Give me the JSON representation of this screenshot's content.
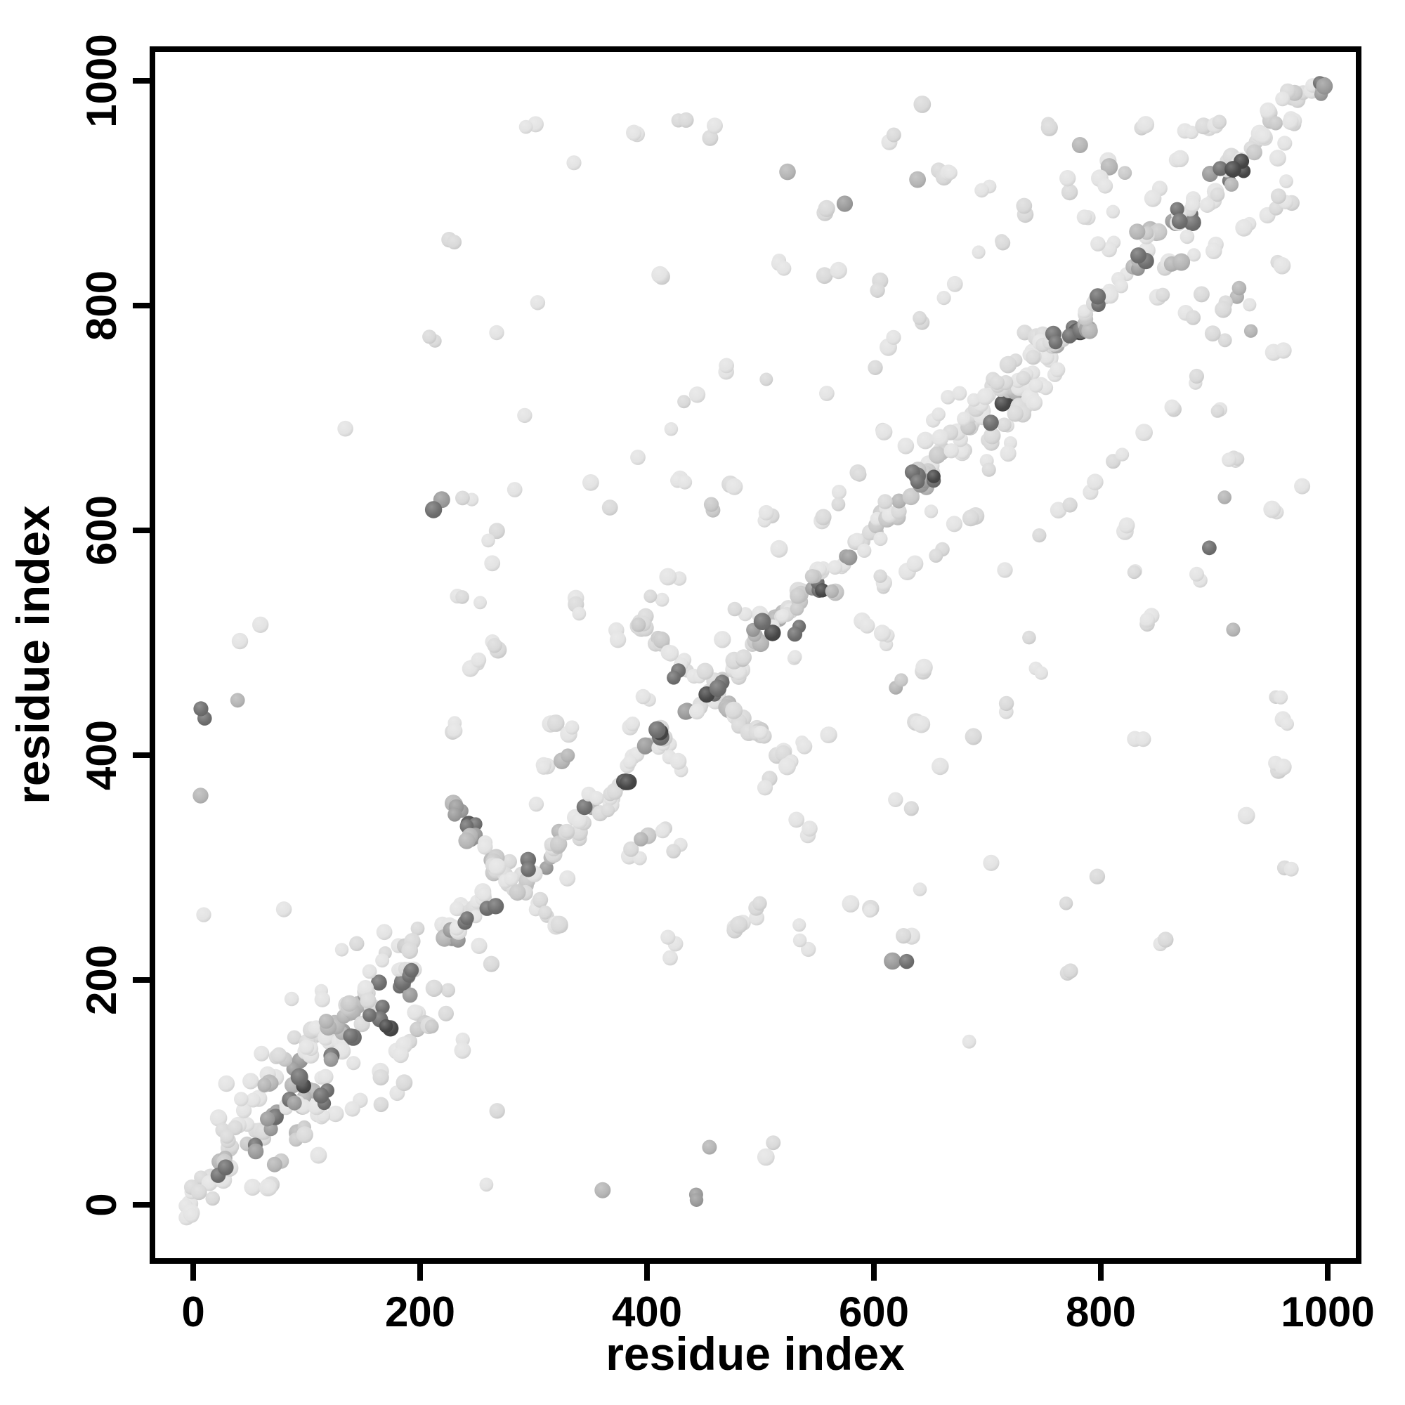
{
  "figure": {
    "background": "#ffffff",
    "frame_color": "#000000"
  },
  "chart_data": {
    "type": "scatter",
    "title": "",
    "xlabel": "residue index",
    "ylabel": "residue index",
    "xlim": [
      0,
      1000
    ],
    "ylim": [
      0,
      1000
    ],
    "x_ticks": {
      "values": [
        0,
        200,
        400,
        600,
        800,
        1000
      ],
      "labels": [
        "0",
        "200",
        "400",
        "600",
        "800",
        "1000"
      ]
    },
    "y_ticks": {
      "values": [
        0,
        200,
        400,
        600,
        800,
        1000
      ],
      "labels": [
        "0",
        "200",
        "400",
        "600",
        "800",
        "1000"
      ]
    },
    "grid": false,
    "legend": null,
    "marker": {
      "shape": "circle",
      "r_min": 9.5,
      "r_max": 12.5,
      "opaque": true
    },
    "palette": [
      "#e3e3e3",
      "#d9d9d9",
      "#c9c9c9",
      "#b5b5b5",
      "#9a9a9a",
      "#6e6e6e",
      "#474747"
    ],
    "shade_weights": [
      38,
      22,
      14,
      10,
      9,
      5,
      2
    ],
    "seed": 20250407,
    "symmetric_mirror": true,
    "diagonal_segments": [
      {
        "x1": 2,
        "y1": 10,
        "x2": 208,
        "y2": 218,
        "clumps": 24,
        "spread": 12,
        "wob": 22,
        "halo": 26,
        "haloSpread": 70
      },
      {
        "x1": 30,
        "y1": 72,
        "x2": 150,
        "y2": 195,
        "clumps": 8,
        "spread": 9,
        "wob": 10,
        "halo": 0,
        "haloSpread": 0
      },
      {
        "x1": 60,
        "y1": 18,
        "x2": 200,
        "y2": 160,
        "clumps": 8,
        "spread": 9,
        "wob": 10,
        "halo": 0,
        "haloSpread": 0
      },
      {
        "x1": 222,
        "y1": 240,
        "x2": 335,
        "y2": 332,
        "clumps": 12,
        "spread": 9,
        "wob": 10,
        "halo": 10,
        "haloSpread": 45
      },
      {
        "x1": 228,
        "y1": 348,
        "x2": 320,
        "y2": 248,
        "clumps": 11,
        "spread": 8,
        "wob": 8,
        "halo": 0,
        "haloSpread": 0
      },
      {
        "x1": 338,
        "y1": 342,
        "x2": 388,
        "y2": 390,
        "clumps": 6,
        "spread": 7,
        "wob": 8,
        "halo": 0,
        "haloSpread": 0
      },
      {
        "x1": 392,
        "y1": 395,
        "x2": 525,
        "y2": 528,
        "clumps": 14,
        "spread": 8,
        "wob": 9,
        "halo": 8,
        "haloSpread": 40
      },
      {
        "x1": 390,
        "y1": 520,
        "x2": 526,
        "y2": 392,
        "clumps": 13,
        "spread": 8,
        "wob": 8,
        "halo": 0,
        "haloSpread": 0
      },
      {
        "x1": 530,
        "y1": 533,
        "x2": 648,
        "y2": 652,
        "clumps": 13,
        "spread": 8,
        "wob": 9,
        "halo": 6,
        "haloSpread": 38
      },
      {
        "x1": 650,
        "y1": 655,
        "x2": 758,
        "y2": 762,
        "clumps": 12,
        "spread": 8,
        "wob": 9,
        "halo": 4,
        "haloSpread": 30
      },
      {
        "x1": 690,
        "y1": 716,
        "x2": 746,
        "y2": 770,
        "clumps": 6,
        "spread": 7,
        "wob": 6,
        "bias": "light"
      },
      {
        "x1": 706,
        "y1": 682,
        "x2": 762,
        "y2": 738,
        "clumps": 6,
        "spread": 7,
        "wob": 6,
        "bias": "light"
      },
      {
        "x1": 762,
        "y1": 766,
        "x2": 996,
        "y2": 1000,
        "clumps": 24,
        "spread": 8,
        "wob": 10,
        "halo": 10,
        "haloSpread": 35
      }
    ],
    "dark_accents": [
      [
        28,
        32,
        2,
        "D"
      ],
      [
        55,
        48,
        2,
        "D"
      ],
      [
        88,
        92,
        2,
        "D"
      ],
      [
        100,
        108,
        2,
        "K"
      ],
      [
        118,
        95,
        3,
        "D"
      ],
      [
        122,
        128,
        2,
        "D"
      ],
      [
        140,
        148,
        2,
        "D"
      ],
      [
        162,
        168,
        3,
        "D"
      ],
      [
        175,
        160,
        2,
        "K"
      ],
      [
        190,
        210,
        3,
        "D"
      ],
      [
        240,
        252,
        2,
        "D"
      ],
      [
        262,
        270,
        2,
        "D"
      ],
      [
        298,
        306,
        2,
        "D"
      ],
      [
        408,
        418,
        3,
        "K"
      ],
      [
        430,
        470,
        2,
        "D"
      ],
      [
        455,
        452,
        2,
        "K"
      ],
      [
        466,
        459,
        2,
        "D"
      ],
      [
        506,
        516,
        2,
        "K"
      ],
      [
        530,
        515,
        2,
        "D"
      ],
      [
        640,
        650,
        4,
        "D"
      ],
      [
        650,
        645,
        2,
        "K"
      ],
      [
        700,
        695,
        2,
        "D"
      ],
      [
        760,
        770,
        2,
        "D"
      ],
      [
        795,
        800,
        2,
        "D"
      ],
      [
        835,
        840,
        2,
        "D"
      ],
      [
        872,
        878,
        2,
        "D"
      ],
      [
        905,
        918,
        2,
        "D"
      ],
      [
        920,
        924,
        3,
        "K"
      ]
    ],
    "contact_sites": [
      [
        8,
        437,
        2,
        "D"
      ],
      [
        46,
        452,
        1,
        "M"
      ],
      [
        60,
        510,
        1,
        "L"
      ],
      [
        10,
        362,
        1,
        "M"
      ],
      [
        15,
        257,
        1,
        "L"
      ],
      [
        41,
        505,
        1,
        "L"
      ],
      [
        80,
        263,
        1,
        "L"
      ],
      [
        107,
        187,
        2,
        "L"
      ],
      [
        140,
        686,
        1,
        "L"
      ],
      [
        145,
        238,
        1,
        "L"
      ],
      [
        171,
        223,
        1,
        "L"
      ],
      [
        209,
        770,
        2,
        "L"
      ],
      [
        215,
        624,
        2,
        "D"
      ],
      [
        225,
        423,
        2,
        "L"
      ],
      [
        232,
        852,
        2,
        "L"
      ],
      [
        233,
        541,
        2,
        "L"
      ],
      [
        235,
        420,
        1,
        "L"
      ],
      [
        238,
        630,
        2,
        "L"
      ],
      [
        250,
        478,
        4,
        "L"
      ],
      [
        253,
        536,
        1,
        "L"
      ],
      [
        261,
        598,
        2,
        "L"
      ],
      [
        263,
        497,
        3,
        "L"
      ],
      [
        267,
        574,
        1,
        "L"
      ],
      [
        268,
        772,
        1,
        "L"
      ],
      [
        280,
        640,
        1,
        "L"
      ],
      [
        300,
        700,
        1,
        "L"
      ],
      [
        300,
        802,
        1,
        "L"
      ],
      [
        300,
        962,
        2,
        "L"
      ],
      [
        310,
        390,
        3,
        "L"
      ],
      [
        315,
        428,
        2,
        "L"
      ],
      [
        330,
        396,
        2,
        "M"
      ],
      [
        332,
        417,
        2,
        "L"
      ],
      [
        336,
        539,
        2,
        "L"
      ],
      [
        340,
        930,
        1,
        "L"
      ],
      [
        342,
        530,
        1,
        "L"
      ],
      [
        350,
        640,
        1,
        "L"
      ],
      [
        352,
        362,
        2,
        "L"
      ],
      [
        365,
        620,
        1,
        "L"
      ],
      [
        373,
        505,
        2,
        "L"
      ],
      [
        389,
        426,
        2,
        "L"
      ],
      [
        390,
        660,
        1,
        "L"
      ],
      [
        390,
        955,
        3,
        "L"
      ],
      [
        405,
        540,
        2,
        "L"
      ],
      [
        415,
        830,
        2,
        "L"
      ],
      [
        420,
        560,
        2,
        "L"
      ],
      [
        420,
        690,
        1,
        "L"
      ],
      [
        430,
        640,
        3,
        "L"
      ],
      [
        430,
        962,
        2,
        "L"
      ],
      [
        440,
        720,
        2,
        "L"
      ],
      [
        455,
        955,
        2,
        "L"
      ],
      [
        460,
        620,
        2,
        "M"
      ],
      [
        470,
        745,
        2,
        "L"
      ],
      [
        475,
        640,
        2,
        "L"
      ],
      [
        485,
        530,
        2,
        "L"
      ],
      [
        500,
        730,
        1,
        "L"
      ],
      [
        505,
        612,
        3,
        "L"
      ],
      [
        517,
        919,
        1,
        "M"
      ],
      [
        520,
        590,
        2,
        "L"
      ],
      [
        520,
        838,
        3,
        "L"
      ],
      [
        545,
        562,
        2,
        "M"
      ],
      [
        555,
        610,
        3,
        "L"
      ],
      [
        560,
        720,
        1,
        "L"
      ],
      [
        560,
        888,
        2,
        "L"
      ],
      [
        562,
        828,
        2,
        "L"
      ],
      [
        570,
        630,
        2,
        "L"
      ],
      [
        580,
        890,
        1,
        "D"
      ],
      [
        585,
        655,
        2,
        "L"
      ],
      [
        600,
        745,
        1,
        "L"
      ],
      [
        600,
        820,
        2,
        "L"
      ],
      [
        610,
        690,
        2,
        "L"
      ],
      [
        615,
        952,
        2,
        "L"
      ],
      [
        620,
        765,
        2,
        "L"
      ],
      [
        635,
        905,
        1,
        "M"
      ],
      [
        640,
        790,
        2,
        "L"
      ],
      [
        640,
        985,
        1,
        "L"
      ],
      [
        655,
        700,
        2,
        "L"
      ],
      [
        660,
        918,
        4,
        "L"
      ],
      [
        665,
        815,
        2,
        "L"
      ],
      [
        672,
        722,
        2,
        "L"
      ],
      [
        690,
        840,
        1,
        "L"
      ],
      [
        700,
        905,
        2,
        "L"
      ],
      [
        710,
        862,
        2,
        "L"
      ],
      [
        735,
        885,
        2,
        "L"
      ],
      [
        760,
        960,
        2,
        "L"
      ],
      [
        770,
        905,
        2,
        "L"
      ],
      [
        790,
        880,
        2,
        "L"
      ],
      [
        800,
        930,
        1,
        "L"
      ],
      [
        805,
        855,
        3,
        "L"
      ],
      [
        815,
        922,
        2,
        "M"
      ],
      [
        840,
        858,
        2,
        "L"
      ],
      [
        850,
        900,
        2,
        "L"
      ],
      [
        865,
        838,
        2,
        "M"
      ],
      [
        870,
        930,
        2,
        "L"
      ],
      [
        880,
        955,
        2,
        "L"
      ],
      [
        890,
        815,
        1,
        "L"
      ],
      [
        892,
        962,
        2,
        "L"
      ],
      [
        912,
        800,
        2,
        "L"
      ],
      [
        935,
        782,
        1,
        "M"
      ],
      [
        958,
        838,
        2,
        "L"
      ],
      [
        960,
        905,
        2,
        "L"
      ]
    ]
  }
}
